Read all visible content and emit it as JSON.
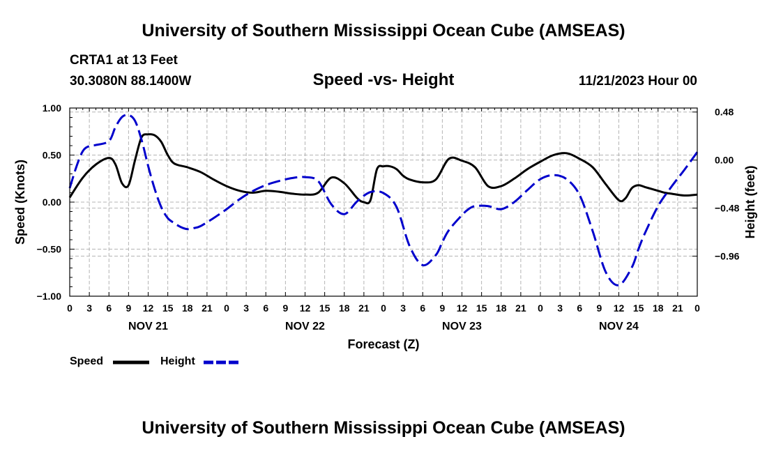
{
  "header": {
    "title": "University of Southern Mississippi Ocean Cube (AMSEAS)",
    "station": "CRTA1 at 13 Feet",
    "coords": "30.3080N  88.1400W",
    "date": "11/21/2023 Hour 00"
  },
  "footer": {
    "title": "University of Southern Mississippi Ocean Cube (AMSEAS)"
  },
  "chart_data": {
    "type": "line",
    "title": "Speed -vs- Height",
    "xlabel": "Forecast (Z)",
    "ylabel": "Speed (Knots)",
    "y2label": "Height (feet)",
    "xlim": [
      0,
      96
    ],
    "ylim": [
      -1.0,
      1.0
    ],
    "y2lim": [
      -1.36,
      0.52
    ],
    "x_ticks": [
      0,
      3,
      6,
      9,
      12,
      15,
      18,
      21,
      24,
      27,
      30,
      33,
      36,
      39,
      42,
      45,
      48,
      51,
      54,
      57,
      60,
      63,
      66,
      69,
      72,
      75,
      78,
      81,
      84,
      87,
      90,
      93,
      96
    ],
    "x_tick_labels": [
      "0",
      "3",
      "6",
      "9",
      "12",
      "15",
      "18",
      "21",
      "0",
      "3",
      "6",
      "9",
      "12",
      "15",
      "18",
      "21",
      "0",
      "3",
      "6",
      "9",
      "12",
      "15",
      "18",
      "21",
      "0",
      "3",
      "6",
      "9",
      "12",
      "15",
      "18",
      "21",
      "0"
    ],
    "day_labels": [
      {
        "x": 12,
        "label": "NOV 21"
      },
      {
        "x": 36,
        "label": "NOV 22"
      },
      {
        "x": 60,
        "label": "NOV 23"
      },
      {
        "x": 84,
        "label": "NOV 24"
      }
    ],
    "y_ticks": [
      -1.0,
      -0.5,
      0.0,
      0.5,
      1.0
    ],
    "y_tick_labels": [
      "−1.00",
      "−0.50",
      "0.00",
      "0.50",
      "1.00"
    ],
    "y2_ticks": [
      -0.96,
      -0.48,
      0.0,
      0.48
    ],
    "y2_tick_labels": [
      "−0.96",
      "−0.48",
      "0.00",
      "0.48"
    ],
    "grid": true,
    "legend": {
      "placement": "bottom-left"
    },
    "series": [
      {
        "name": "Speed",
        "axis": "left",
        "color": "#000000",
        "dash": "solid",
        "x": [
          0,
          2,
          4,
          6,
          7,
          8,
          9,
          10,
          11,
          12,
          13,
          14,
          15,
          16,
          18,
          20,
          22,
          24,
          26,
          28,
          30,
          32,
          34,
          36,
          38,
          40,
          42,
          44,
          45,
          46,
          47,
          48,
          49,
          50,
          51,
          52,
          54,
          56,
          58,
          60,
          62,
          64,
          66,
          68,
          70,
          72,
          74,
          76,
          78,
          80,
          82,
          84,
          85,
          86,
          87,
          88,
          89,
          90,
          91,
          92,
          94,
          96
        ],
        "y": [
          0.05,
          0.26,
          0.4,
          0.47,
          0.4,
          0.2,
          0.18,
          0.45,
          0.69,
          0.72,
          0.71,
          0.64,
          0.5,
          0.41,
          0.37,
          0.32,
          0.24,
          0.17,
          0.12,
          0.1,
          0.12,
          0.11,
          0.09,
          0.08,
          0.1,
          0.26,
          0.2,
          0.04,
          0.0,
          0.02,
          0.35,
          0.38,
          0.38,
          0.35,
          0.28,
          0.24,
          0.21,
          0.24,
          0.46,
          0.44,
          0.37,
          0.17,
          0.17,
          0.25,
          0.35,
          0.43,
          0.5,
          0.52,
          0.46,
          0.37,
          0.19,
          0.02,
          0.04,
          0.15,
          0.18,
          0.16,
          0.14,
          0.12,
          0.1,
          0.09,
          0.07,
          0.08
        ]
      },
      {
        "name": "Height",
        "axis": "right",
        "color": "#0000cc",
        "dash": "dashed",
        "x": [
          0,
          1,
          2,
          3,
          4,
          6,
          7,
          8,
          9,
          10,
          11,
          12,
          13,
          14,
          15,
          16,
          17,
          18,
          19,
          20,
          22,
          24,
          26,
          28,
          30,
          32,
          34,
          36,
          38,
          40,
          42,
          44,
          46,
          48,
          50,
          52,
          54,
          56,
          57,
          58,
          60,
          61,
          62,
          64,
          66,
          68,
          70,
          72,
          74,
          76,
          78,
          80,
          82,
          84,
          86,
          87,
          88,
          90,
          92,
          94,
          96
        ],
        "y": [
          -0.28,
          -0.07,
          0.09,
          0.14,
          0.15,
          0.19,
          0.33,
          0.43,
          0.45,
          0.39,
          0.2,
          -0.06,
          -0.29,
          -0.47,
          -0.58,
          -0.63,
          -0.67,
          -0.69,
          -0.68,
          -0.66,
          -0.58,
          -0.49,
          -0.39,
          -0.31,
          -0.25,
          -0.21,
          -0.18,
          -0.17,
          -0.21,
          -0.44,
          -0.54,
          -0.41,
          -0.32,
          -0.33,
          -0.47,
          -0.86,
          -1.05,
          -0.95,
          -0.82,
          -0.7,
          -0.55,
          -0.49,
          -0.46,
          -0.46,
          -0.49,
          -0.42,
          -0.3,
          -0.19,
          -0.15,
          -0.19,
          -0.35,
          -0.71,
          -1.12,
          -1.25,
          -1.07,
          -0.89,
          -0.73,
          -0.46,
          -0.27,
          -0.1,
          0.08
        ]
      }
    ]
  }
}
